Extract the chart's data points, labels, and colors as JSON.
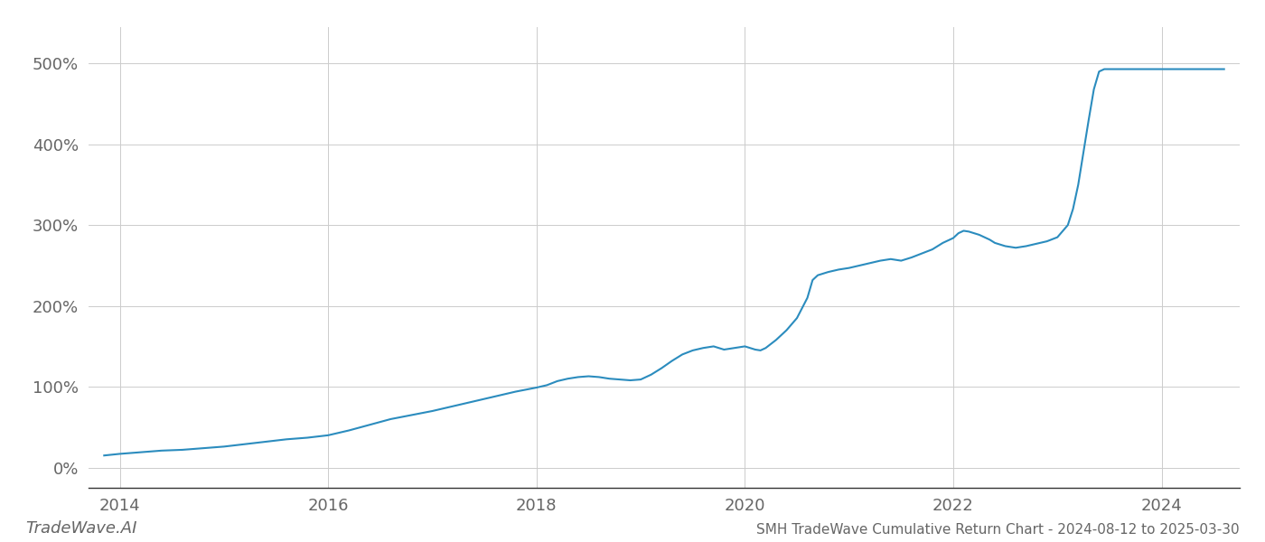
{
  "title": "SMH TradeWave Cumulative Return Chart - 2024-08-12 to 2025-03-30",
  "watermark": "TradeWave.AI",
  "line_color": "#2b8cbe",
  "background_color": "#ffffff",
  "grid_color": "#cccccc",
  "data_points": [
    [
      2013.85,
      15
    ],
    [
      2014.0,
      17
    ],
    [
      2014.2,
      19
    ],
    [
      2014.4,
      21
    ],
    [
      2014.6,
      22
    ],
    [
      2014.8,
      24
    ],
    [
      2015.0,
      26
    ],
    [
      2015.2,
      29
    ],
    [
      2015.4,
      32
    ],
    [
      2015.6,
      35
    ],
    [
      2015.8,
      37
    ],
    [
      2016.0,
      40
    ],
    [
      2016.2,
      46
    ],
    [
      2016.4,
      53
    ],
    [
      2016.6,
      60
    ],
    [
      2016.8,
      65
    ],
    [
      2017.0,
      70
    ],
    [
      2017.2,
      76
    ],
    [
      2017.4,
      82
    ],
    [
      2017.6,
      88
    ],
    [
      2017.8,
      94
    ],
    [
      2018.0,
      99
    ],
    [
      2018.1,
      102
    ],
    [
      2018.2,
      107
    ],
    [
      2018.3,
      110
    ],
    [
      2018.4,
      112
    ],
    [
      2018.5,
      113
    ],
    [
      2018.6,
      112
    ],
    [
      2018.7,
      110
    ],
    [
      2018.8,
      109
    ],
    [
      2018.9,
      108
    ],
    [
      2019.0,
      109
    ],
    [
      2019.1,
      115
    ],
    [
      2019.2,
      123
    ],
    [
      2019.3,
      132
    ],
    [
      2019.4,
      140
    ],
    [
      2019.5,
      145
    ],
    [
      2019.6,
      148
    ],
    [
      2019.7,
      150
    ],
    [
      2019.75,
      148
    ],
    [
      2019.8,
      146
    ],
    [
      2019.9,
      148
    ],
    [
      2020.0,
      150
    ],
    [
      2020.05,
      148
    ],
    [
      2020.1,
      146
    ],
    [
      2020.15,
      145
    ],
    [
      2020.2,
      148
    ],
    [
      2020.3,
      158
    ],
    [
      2020.4,
      170
    ],
    [
      2020.5,
      185
    ],
    [
      2020.6,
      210
    ],
    [
      2020.65,
      232
    ],
    [
      2020.7,
      238
    ],
    [
      2020.8,
      242
    ],
    [
      2020.9,
      245
    ],
    [
      2021.0,
      247
    ],
    [
      2021.1,
      250
    ],
    [
      2021.2,
      253
    ],
    [
      2021.3,
      256
    ],
    [
      2021.4,
      258
    ],
    [
      2021.5,
      256
    ],
    [
      2021.6,
      260
    ],
    [
      2021.7,
      265
    ],
    [
      2021.8,
      270
    ],
    [
      2021.85,
      274
    ],
    [
      2021.9,
      278
    ],
    [
      2022.0,
      284
    ],
    [
      2022.05,
      290
    ],
    [
      2022.1,
      293
    ],
    [
      2022.15,
      292
    ],
    [
      2022.2,
      290
    ],
    [
      2022.25,
      288
    ],
    [
      2022.3,
      285
    ],
    [
      2022.35,
      282
    ],
    [
      2022.4,
      278
    ],
    [
      2022.5,
      274
    ],
    [
      2022.6,
      272
    ],
    [
      2022.7,
      274
    ],
    [
      2022.8,
      277
    ],
    [
      2022.9,
      280
    ],
    [
      2023.0,
      285
    ],
    [
      2023.1,
      300
    ],
    [
      2023.15,
      320
    ],
    [
      2023.2,
      350
    ],
    [
      2023.25,
      390
    ],
    [
      2023.3,
      430
    ],
    [
      2023.35,
      468
    ],
    [
      2023.4,
      490
    ],
    [
      2023.45,
      493
    ],
    [
      2023.5,
      493
    ],
    [
      2023.6,
      493
    ],
    [
      2023.7,
      493
    ],
    [
      2023.8,
      493
    ],
    [
      2023.9,
      493
    ],
    [
      2024.0,
      493
    ],
    [
      2024.1,
      493
    ],
    [
      2024.2,
      493
    ],
    [
      2024.3,
      493
    ],
    [
      2024.4,
      493
    ],
    [
      2024.5,
      493
    ],
    [
      2024.6,
      493
    ]
  ],
  "xlim": [
    2013.7,
    2024.75
  ],
  "ylim": [
    -25,
    545
  ],
  "yticks": [
    0,
    100,
    200,
    300,
    400,
    500
  ],
  "xticks": [
    2014,
    2016,
    2018,
    2020,
    2022,
    2024
  ],
  "title_fontsize": 11,
  "tick_fontsize": 13,
  "watermark_fontsize": 13,
  "tick_color": "#666666"
}
